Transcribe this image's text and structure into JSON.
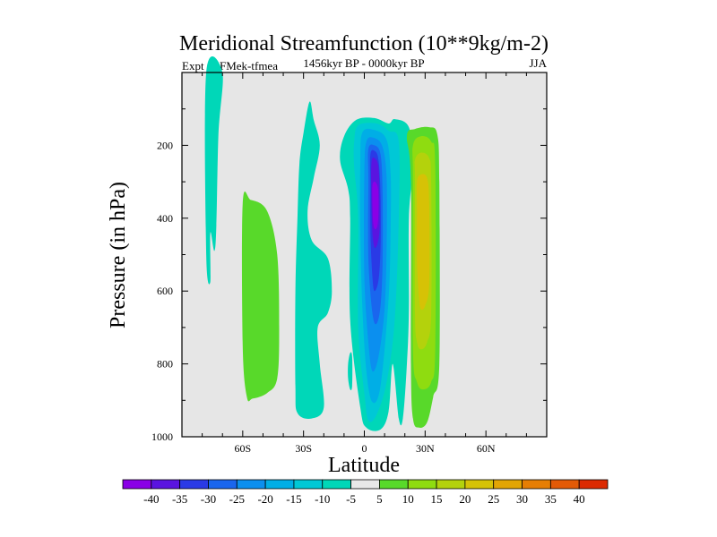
{
  "chart_data": {
    "type": "heatmap",
    "title": "Meridional Streamfunction (10**9kg/m-2)",
    "subtitle": "1456kyr BP - 0000kyr BP",
    "left_label": "Expt = tFMek-tfmea",
    "right_label": "JJA",
    "xlabel": "Latitude",
    "ylabel": "Pressure (in hPa)",
    "xlim": [
      -90,
      90
    ],
    "ylim": [
      1000,
      0
    ],
    "x_ticks": [
      -60,
      -30,
      0,
      30,
      60
    ],
    "x_tick_labels": [
      "60S",
      "30S",
      "0",
      "30N",
      "60N"
    ],
    "y_ticks": [
      200,
      400,
      600,
      800,
      1000
    ],
    "y_tick_labels": [
      "200",
      "400",
      "600",
      "800",
      "1000"
    ],
    "background_color": "#e6e6e6",
    "colorbar": {
      "labels": [
        "-40",
        "-35",
        "-30",
        "-25",
        "-20",
        "-15",
        "-10",
        "-5",
        "5",
        "10",
        "15",
        "20",
        "25",
        "30",
        "35",
        "40"
      ],
      "colors": [
        "#8a00e6",
        "#5a14e0",
        "#2a3ae6",
        "#1a66ee",
        "#0b8fef",
        "#00aee6",
        "#00c8d6",
        "#00d7b8",
        "#e8e8e8",
        "#58d92a",
        "#8fdc10",
        "#b4d20c",
        "#d6c206",
        "#e2a504",
        "#e67e04",
        "#e35a06",
        "#dc2a02"
      ]
    },
    "regions": [
      {
        "name": "antarctic-band",
        "color": "#00d7b8",
        "points": [
          [
            -78,
            0
          ],
          [
            -70,
            0
          ],
          [
            -72,
            170
          ],
          [
            -73,
            420
          ],
          [
            -74,
            490
          ],
          [
            -76,
            440
          ],
          [
            -76,
            575
          ],
          [
            -78,
            500
          ]
        ]
      },
      {
        "name": "southern-positive-cell",
        "color": "#58d92a",
        "points": [
          [
            -60,
            360
          ],
          [
            -56,
            350
          ],
          [
            -48,
            380
          ],
          [
            -43,
            500
          ],
          [
            -42,
            700
          ],
          [
            -43,
            840
          ],
          [
            -48,
            880
          ],
          [
            -55,
            895
          ],
          [
            -58,
            890
          ],
          [
            -60,
            750
          ]
        ]
      },
      {
        "name": "southern-negative-band",
        "color": "#00d7b8",
        "points": [
          [
            -30,
            165
          ],
          [
            -27,
            80
          ],
          [
            -25,
            130
          ],
          [
            -22,
            200
          ],
          [
            -25,
            290
          ],
          [
            -28,
            380
          ],
          [
            -26,
            460
          ],
          [
            -18,
            510
          ],
          [
            -16,
            600
          ],
          [
            -18,
            660
          ],
          [
            -23,
            700
          ],
          [
            -22,
            800
          ],
          [
            -20,
            920
          ],
          [
            -26,
            950
          ],
          [
            -33,
            935
          ],
          [
            -34,
            860
          ],
          [
            -34,
            600
          ],
          [
            -33,
            400
          ],
          [
            -32,
            250
          ]
        ]
      },
      {
        "name": "equatorial-isolated-patch",
        "color": "#00d7b8",
        "points": [
          [
            -7,
            770
          ],
          [
            -6,
            780
          ],
          [
            -6,
            860
          ],
          [
            -7,
            870
          ],
          [
            -8,
            840
          ],
          [
            -8,
            800
          ]
        ]
      },
      {
        "name": "hadley-outer",
        "color": "#00d7b8",
        "points": [
          [
            -4,
            130
          ],
          [
            5,
            125
          ],
          [
            12,
            140
          ],
          [
            15,
            128
          ],
          [
            22,
            150
          ],
          [
            24,
            250
          ],
          [
            22,
            400
          ],
          [
            22,
            650
          ],
          [
            21,
            800
          ],
          [
            19,
            950
          ],
          [
            17,
            950
          ],
          [
            14,
            800
          ],
          [
            12,
            930
          ],
          [
            8,
            980
          ],
          [
            1,
            975
          ],
          [
            -2,
            920
          ],
          [
            -7,
            680
          ],
          [
            -7,
            400
          ],
          [
            -8,
            320
          ],
          [
            -12,
            240
          ],
          [
            -10,
            175
          ]
        ]
      },
      {
        "name": "hadley-l2",
        "color": "#00c8d6",
        "points": [
          [
            -3,
            145
          ],
          [
            6,
            140
          ],
          [
            12,
            160
          ],
          [
            17,
            190
          ],
          [
            17,
            400
          ],
          [
            15,
            680
          ],
          [
            11,
            850
          ],
          [
            6,
            940
          ],
          [
            2,
            955
          ],
          [
            0,
            880
          ],
          [
            -3,
            700
          ],
          [
            -3,
            400
          ],
          [
            -5,
            260
          ],
          [
            -5,
            190
          ]
        ]
      },
      {
        "name": "hadley-l3",
        "color": "#00aee6",
        "points": [
          [
            -1,
            165
          ],
          [
            5,
            158
          ],
          [
            11,
            185
          ],
          [
            13,
            280
          ],
          [
            13,
            420
          ],
          [
            12,
            620
          ],
          [
            8,
            860
          ],
          [
            4,
            905
          ],
          [
            1,
            820
          ],
          [
            -1,
            640
          ],
          [
            -2,
            430
          ],
          [
            -2,
            250
          ]
        ]
      },
      {
        "name": "hadley-l4",
        "color": "#0b8fef",
        "points": [
          [
            1,
            190
          ],
          [
            5,
            180
          ],
          [
            9,
            205
          ],
          [
            11,
            290
          ],
          [
            11,
            480
          ],
          [
            10,
            650
          ],
          [
            7,
            780
          ],
          [
            4,
            820
          ],
          [
            2,
            740
          ],
          [
            0,
            560
          ],
          [
            0,
            280
          ]
        ]
      },
      {
        "name": "hadley-l5",
        "color": "#1a66ee",
        "points": [
          [
            2,
            210
          ],
          [
            5,
            200
          ],
          [
            8,
            225
          ],
          [
            9,
            330
          ],
          [
            9,
            520
          ],
          [
            8,
            640
          ],
          [
            6,
            690
          ],
          [
            4,
            660
          ],
          [
            2,
            510
          ],
          [
            2,
            300
          ]
        ]
      },
      {
        "name": "hadley-l6",
        "color": "#2a3ae6",
        "points": [
          [
            3,
            225
          ],
          [
            5,
            215
          ],
          [
            7,
            240
          ],
          [
            8,
            340
          ],
          [
            8,
            480
          ],
          [
            7,
            570
          ],
          [
            5,
            600
          ],
          [
            4,
            560
          ],
          [
            3,
            440
          ],
          [
            3,
            310
          ]
        ]
      },
      {
        "name": "hadley-core-l7",
        "color": "#5a14e0",
        "points": [
          [
            3.5,
            250
          ],
          [
            5,
            235
          ],
          [
            7,
            260
          ],
          [
            7.5,
            350
          ],
          [
            7.5,
            430
          ],
          [
            6.5,
            470
          ],
          [
            5,
            480
          ],
          [
            4,
            440
          ],
          [
            3.5,
            360
          ]
        ]
      },
      {
        "name": "hadley-core-l8",
        "color": "#8a00e6",
        "points": [
          [
            4,
            310
          ],
          [
            5.3,
            300
          ],
          [
            6.8,
            320
          ],
          [
            7,
            380
          ],
          [
            6.5,
            420
          ],
          [
            5.2,
            430
          ],
          [
            4.3,
            410
          ],
          [
            4,
            360
          ]
        ]
      },
      {
        "name": "northern-outer",
        "color": "#58d92a",
        "points": [
          [
            21,
            175
          ],
          [
            25,
            155
          ],
          [
            32,
            150
          ],
          [
            36,
            170
          ],
          [
            37,
            300
          ],
          [
            37,
            800
          ],
          [
            34,
            890
          ],
          [
            31,
            960
          ],
          [
            27,
            975
          ],
          [
            24,
            950
          ],
          [
            23,
            800
          ],
          [
            23,
            300
          ]
        ]
      },
      {
        "name": "northern-l2",
        "color": "#8fdc10",
        "points": [
          [
            24,
            200
          ],
          [
            28,
            175
          ],
          [
            33,
            190
          ],
          [
            35,
            260
          ],
          [
            35,
            760
          ],
          [
            33,
            850
          ],
          [
            29,
            870
          ],
          [
            26,
            850
          ],
          [
            24,
            760
          ],
          [
            24,
            300
          ]
        ]
      },
      {
        "name": "northern-core",
        "color": "#b4d20c",
        "points": [
          [
            25,
            240
          ],
          [
            28,
            220
          ],
          [
            32,
            235
          ],
          [
            33,
            300
          ],
          [
            33,
            660
          ],
          [
            31,
            740
          ],
          [
            28,
            760
          ],
          [
            26,
            740
          ],
          [
            25,
            660
          ],
          [
            25,
            300
          ]
        ]
      },
      {
        "name": "northern-yellow",
        "color": "#d6c206",
        "points": [
          [
            26,
            300
          ],
          [
            28,
            280
          ],
          [
            31,
            290
          ],
          [
            32,
            360
          ],
          [
            32,
            580
          ],
          [
            30,
            640
          ],
          [
            28,
            650
          ],
          [
            27,
            620
          ],
          [
            26,
            520
          ],
          [
            26,
            380
          ]
        ]
      }
    ]
  }
}
